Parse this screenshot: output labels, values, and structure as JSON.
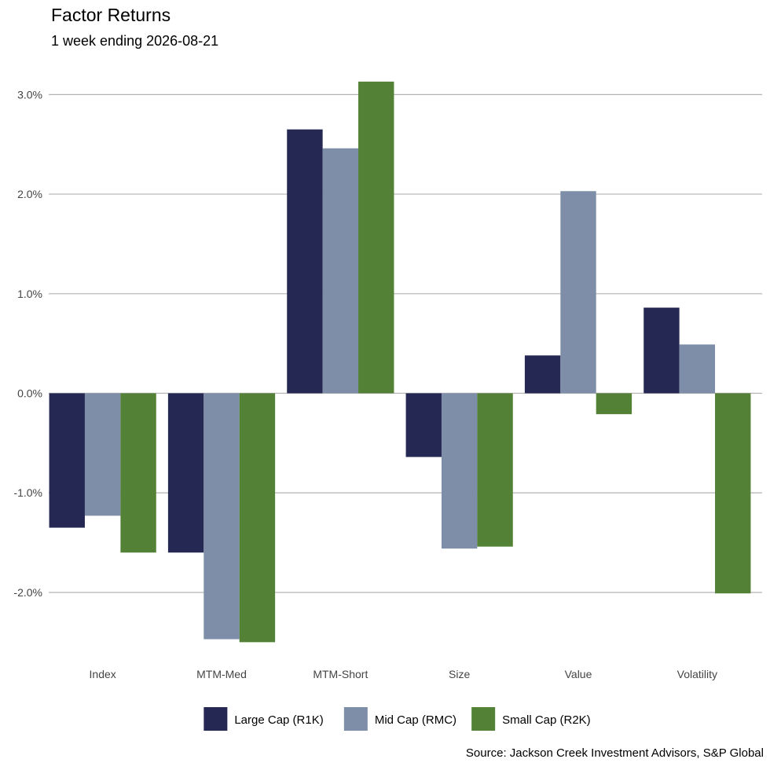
{
  "chart_data": {
    "type": "bar",
    "title": "Factor Returns",
    "subtitle": "1 week ending 2026-08-21",
    "caption": "Source: Jackson Creek Investment Advisors, S&P Global",
    "categories": [
      "Index",
      "MTM-Med",
      "MTM-Short",
      "Size",
      "Value",
      "Volatility"
    ],
    "series": [
      {
        "name": "Large Cap (R1K)",
        "color": "#252853",
        "values": [
          -1.35,
          -1.6,
          2.65,
          -0.64,
          0.38,
          0.86
        ]
      },
      {
        "name": "Mid Cap (RMC)",
        "color": "#7f8ea8",
        "values": [
          -1.23,
          -2.47,
          2.46,
          -1.56,
          2.03,
          0.49
        ]
      },
      {
        "name": "Small Cap (R2K)",
        "color": "#538135",
        "values": [
          -1.6,
          -2.5,
          3.13,
          -1.54,
          -0.21,
          -2.01
        ]
      }
    ],
    "yticks": [
      -2.0,
      -1.0,
      0.0,
      1.0,
      2.0,
      3.0
    ],
    "ytick_labels": [
      "-2.0%",
      "-1.0%",
      "0.0%",
      "1.0%",
      "2.0%",
      "3.0%"
    ],
    "ylim": [
      -2.6,
      3.2
    ],
    "grid": true,
    "legend_position": "bottom"
  }
}
